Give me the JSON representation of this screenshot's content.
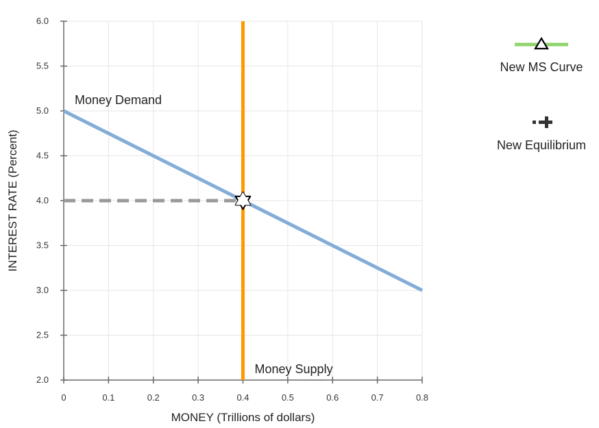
{
  "chart_data": {
    "type": "line",
    "xlabel": "MONEY (Trillions of dollars)",
    "ylabel": "INTEREST RATE (Percent)",
    "xlim": [
      0,
      0.8
    ],
    "ylim": [
      2.0,
      6.0
    ],
    "x_ticks": [
      "0",
      "0.1",
      "0.2",
      "0.3",
      "0.4",
      "0.5",
      "0.6",
      "0.7",
      "0.8"
    ],
    "y_ticks": [
      "2.0",
      "2.5",
      "3.0",
      "3.5",
      "4.0",
      "4.5",
      "5.0",
      "5.5",
      "6.0"
    ],
    "grid": true,
    "legend_position": "right",
    "series": [
      {
        "name": "Money Demand",
        "color": "#84acd8",
        "points": [
          [
            0,
            5.0
          ],
          [
            0.8,
            3.0
          ]
        ]
      },
      {
        "name": "Money Supply",
        "color": "#ff9900",
        "points": [
          [
            0.4,
            2.0
          ],
          [
            0.4,
            6.0
          ]
        ]
      }
    ],
    "equilibrium": {
      "x": 0.4,
      "y": 4.0,
      "guide_color": "#999999",
      "marker": "star-icon"
    },
    "legend": [
      {
        "label": "New MS Curve",
        "color": "#8fd46b",
        "icon": "triangle-line-icon"
      },
      {
        "label": "New Equilibrium",
        "color": "#333333",
        "icon": "plus-marker-icon"
      }
    ]
  }
}
